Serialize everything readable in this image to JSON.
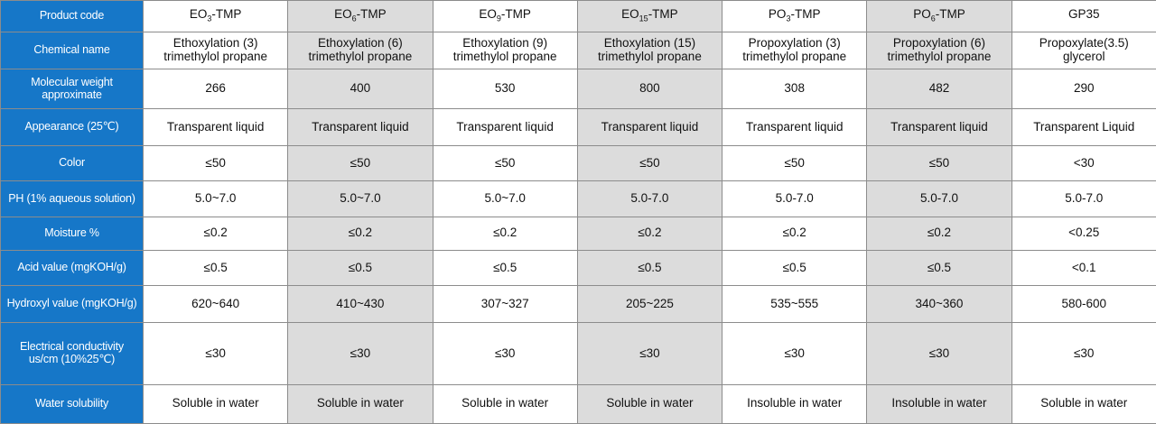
{
  "table": {
    "row_headers": {
      "product_code": "Product code",
      "chemical_name": "Chemical name",
      "molecular_weight": "Molecular weight approximate",
      "appearance": "Appearance (25℃)",
      "color": "Color",
      "ph": "PH (1% aqueous solution)",
      "moisture": "Moisture %",
      "acid_value": "Acid value (mgKOH/g)",
      "hydroxyl_value": "Hydroxyl value (mgKOH/g)",
      "electrical_conductivity": "Electrical conductivity us/cm (10%25℃)",
      "water_solubility": "Water solubility"
    },
    "products": [
      {
        "code_prefix": "EO",
        "code_sub": "3",
        "code_suffix": "-TMP",
        "chemical_name_line1": "Ethoxylation (3)",
        "chemical_name_line2": "trimethylol propane",
        "molecular_weight": "266",
        "appearance": "Transparent liquid",
        "color": "≤50",
        "ph": "5.0~7.0",
        "moisture": "≤0.2",
        "acid_value": "≤0.5",
        "hydroxyl_value": "620~640",
        "electrical_conductivity": "≤30",
        "water_solubility": "Soluble in water"
      },
      {
        "code_prefix": "EO",
        "code_sub": "6",
        "code_suffix": "-TMP",
        "chemical_name_line1": "Ethoxylation (6)",
        "chemical_name_line2": "trimethylol propane",
        "molecular_weight": "400",
        "appearance": "Transparent liquid",
        "color": "≤50",
        "ph": "5.0~7.0",
        "moisture": "≤0.2",
        "acid_value": "≤0.5",
        "hydroxyl_value": "410~430",
        "electrical_conductivity": "≤30",
        "water_solubility": "Soluble in water"
      },
      {
        "code_prefix": "EO",
        "code_sub": "9",
        "code_suffix": "-TMP",
        "chemical_name_line1": "Ethoxylation (9)",
        "chemical_name_line2": "trimethylol propane",
        "molecular_weight": "530",
        "appearance": "Transparent liquid",
        "color": "≤50",
        "ph": "5.0~7.0",
        "moisture": "≤0.2",
        "acid_value": "≤0.5",
        "hydroxyl_value": "307~327",
        "electrical_conductivity": "≤30",
        "water_solubility": "Soluble in water"
      },
      {
        "code_prefix": "EO",
        "code_sub": "15",
        "code_suffix": "-TMP",
        "chemical_name_line1": "Ethoxylation (15)",
        "chemical_name_line2": "trimethylol propane",
        "molecular_weight": "800",
        "appearance": "Transparent liquid",
        "color": "≤50",
        "ph": "5.0-7.0",
        "moisture": "≤0.2",
        "acid_value": "≤0.5",
        "hydroxyl_value": "205~225",
        "electrical_conductivity": "≤30",
        "water_solubility": "Soluble in water"
      },
      {
        "code_prefix": "PO",
        "code_sub": "3",
        "code_suffix": "-TMP",
        "chemical_name_line1": "Propoxylation (3)",
        "chemical_name_line2": "trimethylol propane",
        "molecular_weight": "308",
        "appearance": "Transparent liquid",
        "color": "≤50",
        "ph": "5.0-7.0",
        "moisture": "≤0.2",
        "acid_value": "≤0.5",
        "hydroxyl_value": "535~555",
        "electrical_conductivity": "≤30",
        "water_solubility": "Insoluble in water"
      },
      {
        "code_prefix": "PO",
        "code_sub": "6",
        "code_suffix": "-TMP",
        "chemical_name_line1": "Propoxylation (6)",
        "chemical_name_line2": "trimethylol propane",
        "molecular_weight": "482",
        "appearance": "Transparent liquid",
        "color": "≤50",
        "ph": "5.0-7.0",
        "moisture": "≤0.2",
        "acid_value": "≤0.5",
        "hydroxyl_value": "340~360",
        "electrical_conductivity": "≤30",
        "water_solubility": "Insoluble in water"
      },
      {
        "code_prefix": "GP35",
        "code_sub": "",
        "code_suffix": "",
        "chemical_name_line1": "Propoxylate(3.5)",
        "chemical_name_line2": "glycerol",
        "molecular_weight": "290",
        "appearance": "Transparent Liquid",
        "color": "<30",
        "ph": "5.0-7.0",
        "moisture": "<0.25",
        "acid_value": "<0.1",
        "hydroxyl_value": "580-600",
        "electrical_conductivity": "≤30",
        "water_solubility": "Soluble in water"
      }
    ]
  },
  "colors": {
    "header_column_bg": "#1677c8",
    "shaded_column_bg": "#dcdcdc",
    "plain_column_bg": "#ffffff",
    "grid_line": "#8c8c8c"
  }
}
